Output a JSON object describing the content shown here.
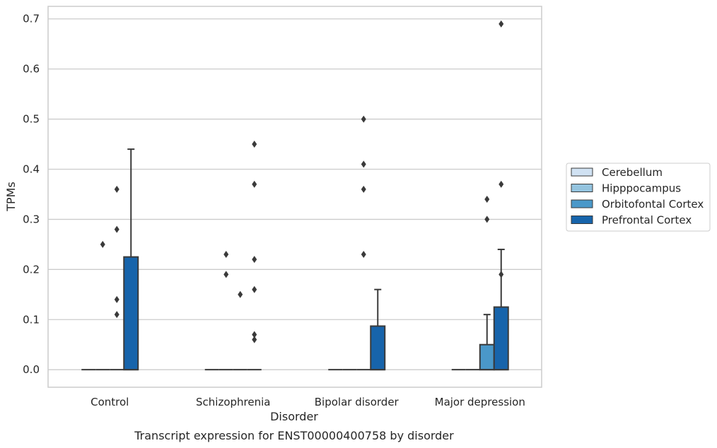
{
  "chart_data": {
    "type": "box",
    "xlabel": "Disorder",
    "ylabel": "TPMs",
    "caption": "Transcript expression for ENST00000400758 by disorder",
    "ylim": [
      -0.035,
      0.725
    ],
    "yticks": [
      "0.0",
      "0.1",
      "0.2",
      "0.3",
      "0.4",
      "0.5",
      "0.6",
      "0.7"
    ],
    "ytick_values": [
      0,
      0.1,
      0.2,
      0.3,
      0.4,
      0.5,
      0.6,
      0.7
    ],
    "grid": "horizontal",
    "legend_placement": "right-outside",
    "categories": [
      "Control",
      "Schizophrenia",
      "Bipolar disorder",
      "Major depression"
    ],
    "series": [
      {
        "name": "Cerebellum",
        "color": "#d0e1f2",
        "boxes": [
          {
            "q1": 0,
            "median": 0,
            "q3": 0,
            "whisker_low": 0,
            "whisker_high": 0,
            "outliers": []
          },
          {
            "q1": 0,
            "median": 0,
            "q3": 0,
            "whisker_low": 0,
            "whisker_high": 0,
            "outliers": []
          },
          {
            "q1": 0,
            "median": 0,
            "q3": 0,
            "whisker_low": 0,
            "whisker_high": 0,
            "outliers": []
          },
          {
            "q1": 0,
            "median": 0,
            "q3": 0,
            "whisker_low": 0,
            "whisker_high": 0,
            "outliers": []
          }
        ]
      },
      {
        "name": "Hipppocampus",
        "color": "#94c4df",
        "boxes": [
          {
            "q1": 0,
            "median": 0,
            "q3": 0,
            "whisker_low": 0,
            "whisker_high": 0,
            "outliers": [
              0.25
            ]
          },
          {
            "q1": 0,
            "median": 0,
            "q3": 0,
            "whisker_low": 0,
            "whisker_high": 0,
            "outliers": [
              0.23,
              0.19
            ]
          },
          {
            "q1": 0,
            "median": 0,
            "q3": 0,
            "whisker_low": 0,
            "whisker_high": 0,
            "outliers": []
          },
          {
            "q1": 0,
            "median": 0,
            "q3": 0,
            "whisker_low": 0,
            "whisker_high": 0,
            "outliers": []
          }
        ]
      },
      {
        "name": "Orbitofontal Cortex",
        "color": "#4a98c9",
        "boxes": [
          {
            "q1": 0,
            "median": 0,
            "q3": 0,
            "whisker_low": 0,
            "whisker_high": 0,
            "outliers": [
              0.28,
              0.14
            ]
          },
          {
            "q1": 0,
            "median": 0,
            "q3": 0,
            "whisker_low": 0,
            "whisker_high": 0,
            "outliers": [
              0.15
            ]
          },
          {
            "q1": 0,
            "median": 0,
            "q3": 0,
            "whisker_low": 0,
            "whisker_high": 0,
            "outliers": [
              0.5,
              0.23
            ]
          },
          {
            "q1": 0,
            "median": 0,
            "q3": 0.05,
            "whisker_low": 0,
            "whisker_high": 0.11,
            "outliers": [
              0.34,
              0.3
            ]
          }
        ]
      },
      {
        "name": "Prefrontal Cortex",
        "color": "#1764ab",
        "boxes": [
          {
            "q1": 0,
            "median": 0,
            "q3": 0.225,
            "whisker_low": 0,
            "whisker_high": 0.44,
            "outliers": []
          },
          {
            "q1": 0,
            "median": 0,
            "q3": 0,
            "whisker_low": 0,
            "whisker_high": 0,
            "outliers": [
              0.45,
              0.37,
              0.06
            ]
          },
          {
            "q1": 0,
            "median": 0,
            "q3": 0.087,
            "whisker_low": 0,
            "whisker_high": 0.16,
            "outliers": []
          },
          {
            "q1": 0,
            "median": 0,
            "q3": 0.125,
            "whisker_low": 0,
            "whisker_high": 0.24,
            "outliers": [
              0.69,
              0.19
            ]
          }
        ]
      }
    ],
    "extra_outliers_between_groups": [
      {
        "category_index": 0,
        "after_series": 2,
        "values": [
          0.36,
          0.11
        ]
      },
      {
        "category_index": 1,
        "after_series": 3,
        "values": [
          0.22,
          0.16,
          0.07
        ]
      },
      {
        "category_index": 2,
        "after_series": 2,
        "values": [
          0.41,
          0.36
        ]
      },
      {
        "category_index": 3,
        "after_series": 3,
        "values": [
          0.37
        ]
      }
    ]
  }
}
